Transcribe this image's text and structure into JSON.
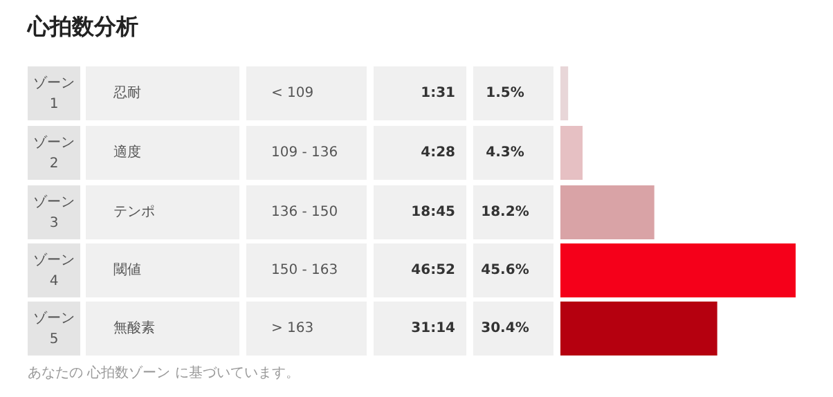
{
  "chart_data": {
    "type": "bar",
    "orientation": "horizontal",
    "title": "心拍数分析",
    "categories": [
      "ゾーン 1",
      "ゾーン 2",
      "ゾーン 3",
      "ゾーン 4",
      "ゾーン 5"
    ],
    "values": [
      1.5,
      4.3,
      18.2,
      45.6,
      30.4
    ],
    "colors": [
      "#e8d6d8",
      "#e6c0c3",
      "#d9a3a6",
      "#f5001a",
      "#b5000f"
    ],
    "value_labels": [
      "1.5%",
      "4.3%",
      "18.2%",
      "45.6%",
      "30.4%"
    ],
    "annotations": [
      "忍耐",
      "< 109",
      "1:31",
      "適度",
      "109 - 136",
      "4:28",
      "テンポ",
      "136 - 150",
      "18:45",
      "閾値",
      "150 - 163",
      "46:52",
      "無酸素",
      "> 163",
      "31:14",
      "あなたの 心拍数ゾーン に基づいています。"
    ]
  }
}
